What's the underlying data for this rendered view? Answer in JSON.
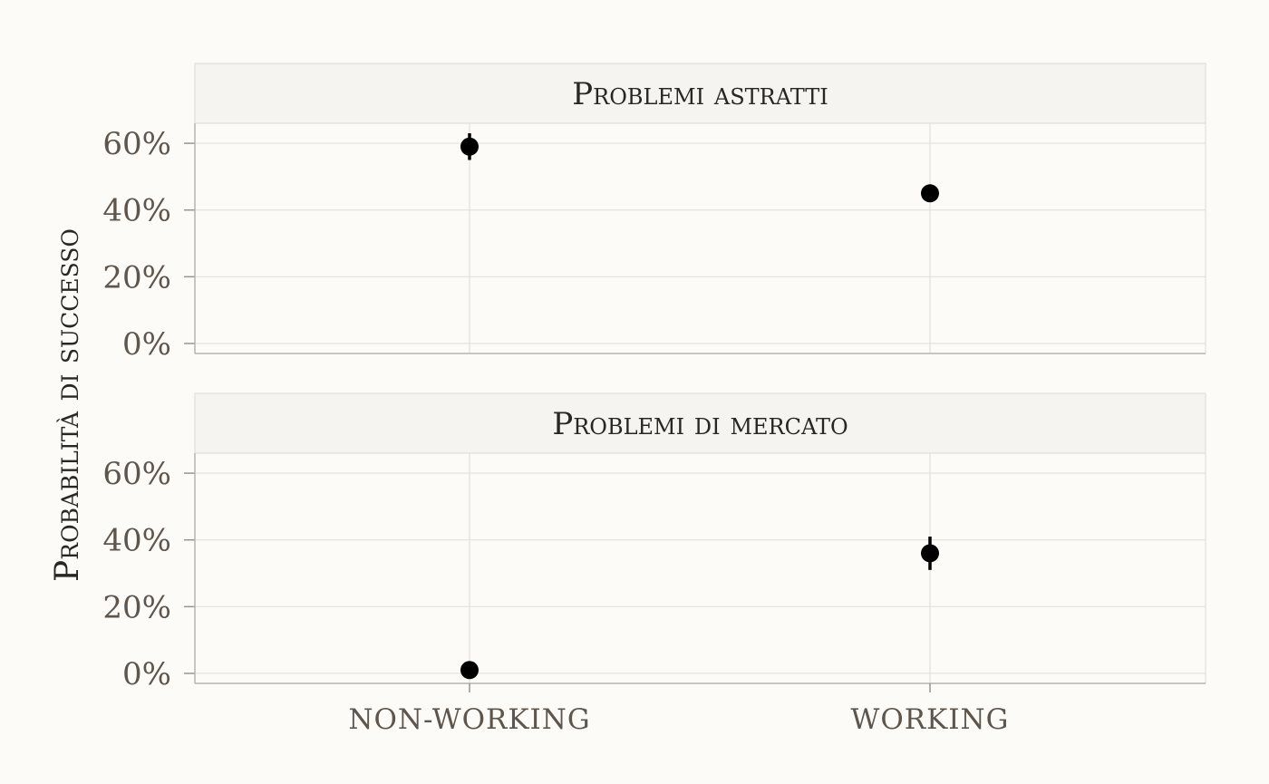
{
  "chart_data": {
    "type": "scatter",
    "ylabel": "Probabilità di successo",
    "xlabel": "",
    "categories": [
      "non-working",
      "working"
    ],
    "yticks": [
      0,
      0.2,
      0.4,
      0.6
    ],
    "ytick_labels": [
      "0%",
      "20%",
      "40%",
      "60%"
    ],
    "ylim": [
      -0.03,
      0.66
    ],
    "grid": true,
    "colors": {
      "point": "#000000",
      "background": "#fcfbf8",
      "strip": "#f5f4f1",
      "grid": "#e2e0dc"
    },
    "panels": [
      {
        "title": "Problemi astratti",
        "points": [
          {
            "x": "non-working",
            "y": 0.59,
            "ymin": 0.55,
            "ymax": 0.63
          },
          {
            "x": "working",
            "y": 0.45,
            "ymin": 0.443,
            "ymax": 0.457
          }
        ]
      },
      {
        "title": "Problemi di mercato",
        "points": [
          {
            "x": "non-working",
            "y": 0.01,
            "ymin": 0.003,
            "ymax": 0.017
          },
          {
            "x": "working",
            "y": 0.36,
            "ymin": 0.31,
            "ymax": 0.41
          }
        ]
      }
    ]
  }
}
